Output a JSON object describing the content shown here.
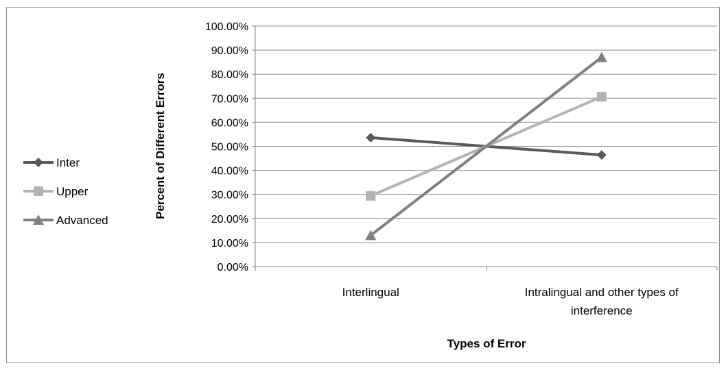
{
  "chart_data": {
    "type": "line",
    "title": "",
    "xlabel": "Types of Error",
    "ylabel": "Percent of Different Errors",
    "categories": [
      "Interlingual",
      "Intralingual and other types of interference"
    ],
    "category_lines": [
      [
        "Interlingual"
      ],
      [
        "Intralingual and other types of",
        "interference"
      ]
    ],
    "ylim": [
      0,
      1
    ],
    "yticks": [
      0,
      0.1,
      0.2,
      0.3,
      0.4,
      0.5,
      0.6,
      0.7,
      0.8,
      0.9,
      1.0
    ],
    "ytick_labels": [
      "0.00%",
      "10.00%",
      "20.00%",
      "30.00%",
      "40.00%",
      "50.00%",
      "60.00%",
      "70.00%",
      "80.00%",
      "90.00%",
      "100.00%"
    ],
    "grid": true,
    "legend_position": "left",
    "series": [
      {
        "name": "Inter",
        "values": [
          0.536,
          0.464
        ],
        "color": "#595959",
        "marker": "diamond"
      },
      {
        "name": "Upper",
        "values": [
          0.294,
          0.706
        ],
        "color": "#b3b3b3",
        "marker": "square"
      },
      {
        "name": "Advanced",
        "values": [
          0.13,
          0.87
        ],
        "color": "#808080",
        "marker": "triangle"
      }
    ]
  }
}
